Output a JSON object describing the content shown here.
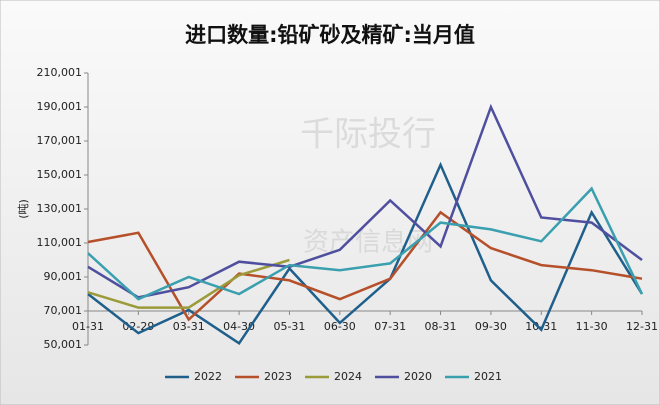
{
  "chart_data": {
    "type": "line",
    "title": "进口数量:铅矿砂及精矿:当月值",
    "y_label": "(吨)",
    "watermark": [
      "千际投行",
      "资产信息网"
    ],
    "categories": [
      "01-31",
      "02-29",
      "03-31",
      "04-30",
      "05-31",
      "06-30",
      "07-31",
      "08-31",
      "09-30",
      "10-31",
      "11-30",
      "12-31"
    ],
    "series": [
      {
        "name": "2022",
        "color": "#1f5f8b",
        "values": [
          80000,
          57000,
          70600,
          51000,
          95000,
          63000,
          89000,
          156000,
          88000,
          59000,
          128000,
          80000
        ]
      },
      {
        "name": "2023",
        "color": "#b5502a",
        "values": [
          110600,
          116000,
          65000,
          92000,
          88000,
          77000,
          89000,
          128000,
          107000,
          97000,
          94000,
          89000
        ]
      },
      {
        "name": "2024",
        "color": "#9b9b3a",
        "values": [
          81000,
          72000,
          72000,
          91000,
          100000,
          null,
          null,
          null,
          null,
          null,
          null,
          null
        ]
      },
      {
        "name": "2020",
        "color": "#4f4f9f",
        "values": [
          96000,
          78000,
          84000,
          99000,
          96000,
          106000,
          135000,
          108000,
          190000,
          125000,
          122000,
          100000
        ]
      },
      {
        "name": "2021",
        "color": "#3a9fae",
        "values": [
          104000,
          77000,
          90000,
          80000,
          97000,
          94000,
          98000,
          122000,
          118000,
          111000,
          142000,
          80000
        ]
      }
    ],
    "ylim": [
      50001,
      210001
    ],
    "yticks": [
      {
        "value": 50001,
        "label": "50,001"
      },
      {
        "value": 70001,
        "label": "70,001"
      },
      {
        "value": 90001,
        "label": "90,001"
      },
      {
        "value": 110001,
        "label": "110,001"
      },
      {
        "value": 130001,
        "label": "130,001"
      },
      {
        "value": 150001,
        "label": "150,001"
      },
      {
        "value": 170001,
        "label": "170,001"
      },
      {
        "value": 190001,
        "label": "190,001"
      },
      {
        "value": 210001,
        "label": "210,001"
      }
    ],
    "x_axis_at": 70001,
    "grid": false,
    "legend": "bottom"
  }
}
